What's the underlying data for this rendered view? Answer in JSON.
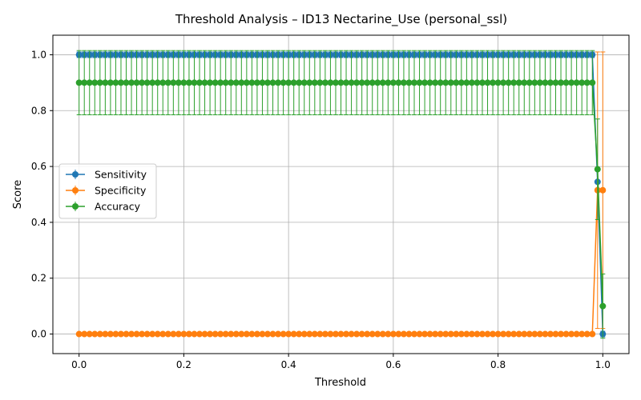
{
  "chart_data": {
    "type": "line",
    "title": "Threshold Analysis – ID13 Nectarine_Use (personal_ssl)",
    "xlabel": "Threshold",
    "ylabel": "Score",
    "xlim": [
      -0.05,
      1.05
    ],
    "ylim": [
      -0.07,
      1.07
    ],
    "xticks": [
      0.0,
      0.2,
      0.4,
      0.6,
      0.8,
      1.0
    ],
    "xtick_labels": [
      "0.0",
      "0.2",
      "0.4",
      "0.6",
      "0.8",
      "1.0"
    ],
    "yticks": [
      0.0,
      0.2,
      0.4,
      0.6,
      0.8,
      1.0
    ],
    "ytick_labels": [
      "0.0",
      "0.2",
      "0.4",
      "0.6",
      "0.8",
      "1.0"
    ],
    "grid": true,
    "legend_position": "center-left",
    "x": {
      "start": 0.0,
      "stop": 1.0,
      "step": 0.01
    },
    "series": [
      {
        "name": "Sensitivity",
        "color": "#1f77b4",
        "default_value": 1.0,
        "default_error": 0.01,
        "overrides": [
          {
            "x": 0.99,
            "value": 0.545,
            "error": 0.0
          },
          {
            "x": 1.0,
            "value": 0.0,
            "error": 0.01
          }
        ]
      },
      {
        "name": "Specificity",
        "color": "#ff7f0e",
        "default_value": 0.0,
        "default_error": 0.0,
        "overrides": [
          {
            "x": 0.99,
            "value": 0.515,
            "error": 0.495
          },
          {
            "x": 1.0,
            "value": 0.515,
            "error": 0.495
          }
        ]
      },
      {
        "name": "Accuracy",
        "color": "#2ca02c",
        "default_value": 0.9,
        "default_error": 0.115,
        "overrides": [
          {
            "x": 0.99,
            "value": 0.59,
            "error": 0.18
          },
          {
            "x": 1.0,
            "value": 0.1,
            "error": 0.115
          }
        ]
      }
    ]
  }
}
